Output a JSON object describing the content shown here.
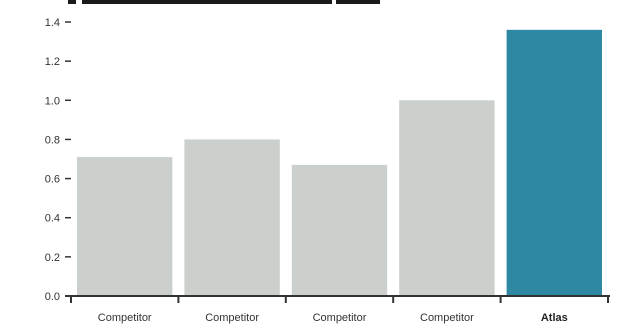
{
  "chart_data": {
    "type": "bar",
    "title": "",
    "xlabel": "",
    "ylabel": "",
    "categories": [
      "Competitor",
      "Competitor",
      "Competitor",
      "Competitor",
      "Atlas"
    ],
    "values": [
      0.71,
      0.8,
      0.67,
      1.0,
      1.36
    ],
    "highlight_index": 4,
    "ylim": [
      0,
      1.4
    ],
    "yticks": [
      "0.0",
      "0.2",
      "0.4",
      "0.6",
      "0.8",
      "1.0",
      "1.2",
      "1.4"
    ],
    "grid": false,
    "legend": "none",
    "colors": {
      "bar": "#ccd0cc",
      "highlight": "#2e88a4",
      "axis": "#333333"
    }
  }
}
